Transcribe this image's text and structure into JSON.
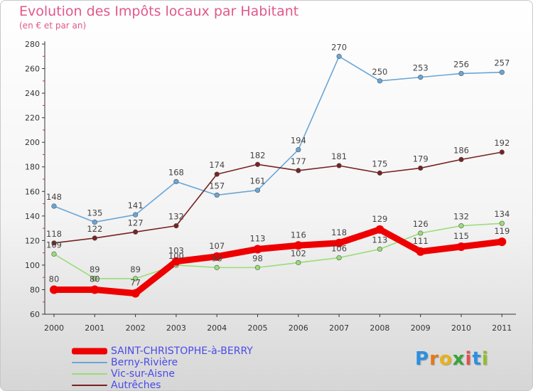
{
  "title": "Evolution des Impôts locaux par Habitant",
  "subtitle": "(en € et par an)",
  "logo": {
    "letters": [
      {
        "ch": "P",
        "color": "#2e8fe0"
      },
      {
        "ch": "r",
        "color": "#e07a1c"
      },
      {
        "ch": "o",
        "color": "#e9b21a"
      },
      {
        "ch": "x",
        "color": "#3aa33a"
      },
      {
        "ch": "i",
        "color": "#e05050"
      },
      {
        "ch": "t",
        "color": "#2e8fe0"
      },
      {
        "ch": "i",
        "color": "#8fbf2a"
      }
    ]
  },
  "chart_data": {
    "type": "line",
    "title": "Evolution des Impôts locaux par Habitant",
    "subtitle": "(en € et par an)",
    "xlabel": "",
    "ylabel": "",
    "x": [
      "2000",
      "2001",
      "2002",
      "2003",
      "2004",
      "2005",
      "2006",
      "2007",
      "2008",
      "2009",
      "2010",
      "2011"
    ],
    "ylim": [
      60,
      280
    ],
    "yticks": [
      60,
      80,
      100,
      120,
      140,
      160,
      180,
      200,
      220,
      240,
      260,
      280
    ],
    "grid": false,
    "legend_position": "bottom-left",
    "series": [
      {
        "name": "SAINT-CHRISTOPHE-à-BERRY",
        "color": "#ee0000",
        "values": [
          80,
          80,
          77,
          103,
          107,
          113,
          116,
          118,
          129,
          111,
          115,
          119
        ]
      },
      {
        "name": "Berny-Rivière",
        "color": "#6aa6d6",
        "values": [
          148,
          135,
          141,
          168,
          157,
          161,
          194,
          270,
          250,
          253,
          256,
          257
        ]
      },
      {
        "name": "Vic-sur-Aisne",
        "color": "#99dd77",
        "values": [
          109,
          89,
          89,
          100,
          98,
          98,
          102,
          106,
          113,
          126,
          132,
          134
        ]
      },
      {
        "name": "Autrêches",
        "color": "#772222",
        "values": [
          118,
          122,
          127,
          132,
          174,
          182,
          177,
          181,
          175,
          179,
          186,
          192
        ]
      }
    ]
  }
}
